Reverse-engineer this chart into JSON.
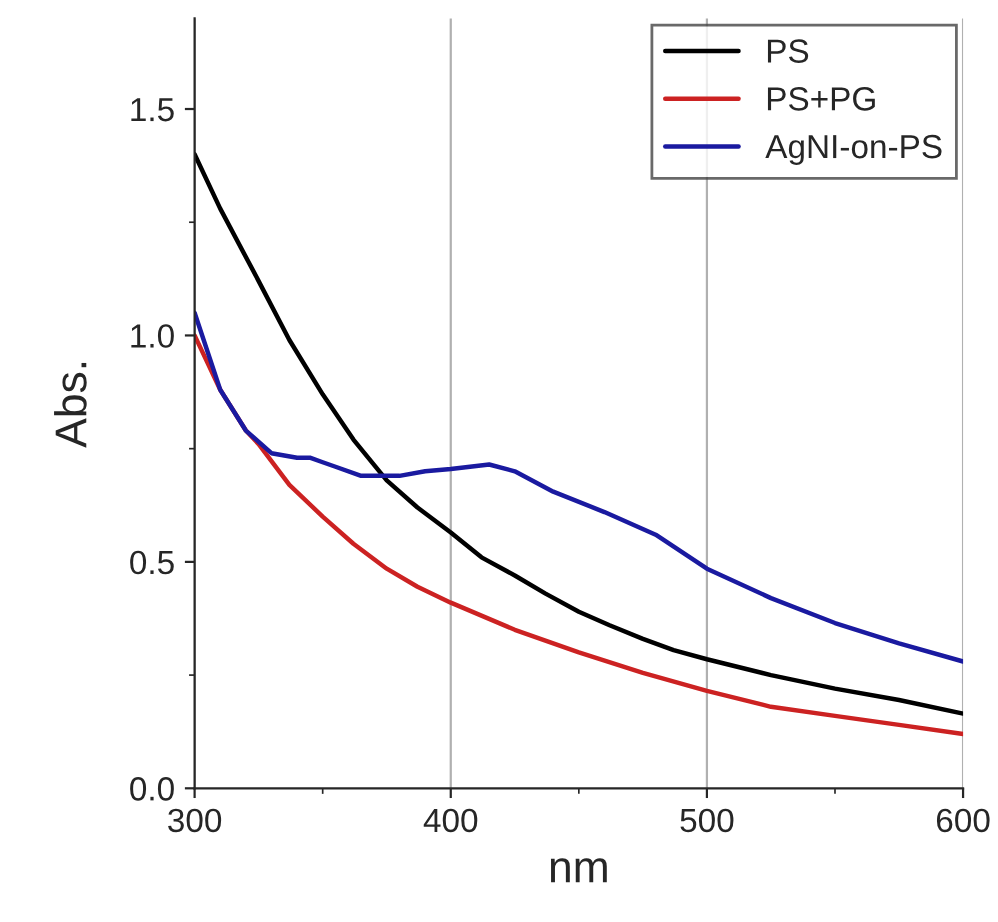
{
  "chart_data": {
    "type": "line",
    "xlabel": "nm",
    "ylabel": "Abs.",
    "xlim": [
      300,
      600
    ],
    "xticks": [
      300,
      400,
      500,
      600
    ],
    "ylim": [
      0,
      1.7
    ],
    "yticks": [
      {
        "value": 0,
        "label": "0.0"
      },
      0.5,
      {
        "value": 1,
        "label": "1.0"
      },
      1.5
    ],
    "grid": "x",
    "legend": "top right",
    "marker": "none",
    "line_style": "solid",
    "series": [
      {
        "name": "PS",
        "color": "#000000",
        "x": [
          300,
          310,
          325,
          337,
          350,
          362,
          375,
          387,
          400,
          412,
          425,
          437,
          450,
          462,
          475,
          487,
          500,
          525,
          550,
          575,
          600
        ],
        "values": [
          1.4,
          1.28,
          1.12,
          0.99,
          0.87,
          0.77,
          0.68,
          0.62,
          0.565,
          0.51,
          0.47,
          0.43,
          0.39,
          0.36,
          0.33,
          0.305,
          0.285,
          0.25,
          0.22,
          0.195,
          0.165
        ]
      },
      {
        "name": "PS+PG",
        "color": "#cc2222",
        "x": [
          300,
          310,
          320,
          325,
          337,
          350,
          362,
          375,
          387,
          400,
          425,
          450,
          475,
          500,
          525,
          550,
          575,
          600
        ],
        "values": [
          1.0,
          0.88,
          0.79,
          0.76,
          0.67,
          0.6,
          0.54,
          0.485,
          0.445,
          0.41,
          0.35,
          0.3,
          0.255,
          0.215,
          0.18,
          0.16,
          0.14,
          0.12
        ]
      },
      {
        "name": "AgNI-on-PS",
        "color": "#1a1aa0",
        "x": [
          300,
          310,
          320,
          330,
          340,
          345,
          350,
          355,
          365,
          380,
          390,
          400,
          415,
          425,
          440,
          460,
          480,
          500,
          525,
          550,
          575,
          600
        ],
        "values": [
          1.05,
          0.88,
          0.79,
          0.74,
          0.73,
          0.73,
          0.72,
          0.71,
          0.69,
          0.69,
          0.7,
          0.705,
          0.715,
          0.7,
          0.655,
          0.61,
          0.56,
          0.485,
          0.42,
          0.365,
          0.32,
          0.28
        ]
      }
    ]
  }
}
